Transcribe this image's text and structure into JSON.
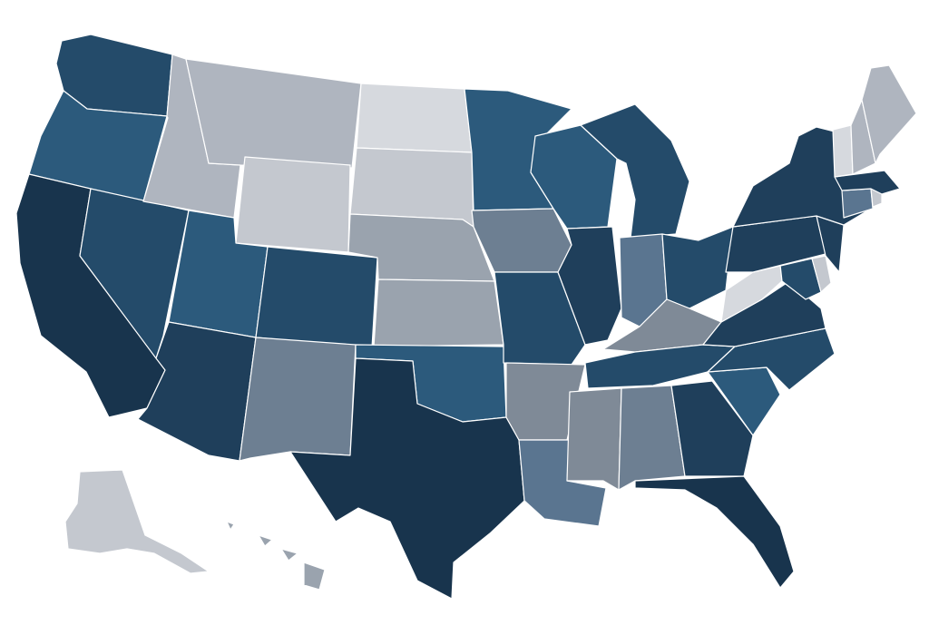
{
  "map": {
    "type": "choropleth",
    "region": "United States",
    "palette": {
      "lightest": "#d6d9de",
      "light": "#c4c8cf",
      "light_mid": "#afb5bf",
      "mid_gray": "#9aa3ae",
      "mid_slate": "#7f8a97",
      "slate": "#6d7f92",
      "blue_gray": "#5a7590",
      "mid_blue": "#2c5a7c",
      "dark_blue": "#244b6a",
      "darker": "#1f3f5b",
      "darkest": "#18344d",
      "border": "#ffffff"
    },
    "states": [
      {
        "id": "WA",
        "shade": "dark_blue"
      },
      {
        "id": "OR",
        "shade": "mid_blue"
      },
      {
        "id": "CA",
        "shade": "darkest"
      },
      {
        "id": "NV",
        "shade": "dark_blue"
      },
      {
        "id": "ID",
        "shade": "light_mid"
      },
      {
        "id": "MT",
        "shade": "light_mid"
      },
      {
        "id": "WY",
        "shade": "light"
      },
      {
        "id": "UT",
        "shade": "mid_blue"
      },
      {
        "id": "AZ",
        "shade": "darker"
      },
      {
        "id": "CO",
        "shade": "dark_blue"
      },
      {
        "id": "NM",
        "shade": "slate"
      },
      {
        "id": "ND",
        "shade": "lightest"
      },
      {
        "id": "SD",
        "shade": "light"
      },
      {
        "id": "NE",
        "shade": "mid_gray"
      },
      {
        "id": "KS",
        "shade": "mid_gray"
      },
      {
        "id": "OK",
        "shade": "mid_blue"
      },
      {
        "id": "TX",
        "shade": "darkest"
      },
      {
        "id": "MN",
        "shade": "mid_blue"
      },
      {
        "id": "IA",
        "shade": "slate"
      },
      {
        "id": "MO",
        "shade": "dark_blue"
      },
      {
        "id": "AR",
        "shade": "mid_slate"
      },
      {
        "id": "LA",
        "shade": "blue_gray"
      },
      {
        "id": "WI",
        "shade": "mid_blue"
      },
      {
        "id": "IL",
        "shade": "darker"
      },
      {
        "id": "MI",
        "shade": "dark_blue"
      },
      {
        "id": "IN",
        "shade": "blue_gray"
      },
      {
        "id": "OH",
        "shade": "dark_blue"
      },
      {
        "id": "KY",
        "shade": "mid_slate"
      },
      {
        "id": "TN",
        "shade": "dark_blue"
      },
      {
        "id": "MS",
        "shade": "mid_slate"
      },
      {
        "id": "AL",
        "shade": "slate"
      },
      {
        "id": "GA",
        "shade": "darker"
      },
      {
        "id": "FL",
        "shade": "darkest"
      },
      {
        "id": "SC",
        "shade": "mid_blue"
      },
      {
        "id": "NC",
        "shade": "dark_blue"
      },
      {
        "id": "VA",
        "shade": "darker"
      },
      {
        "id": "WV",
        "shade": "lightest"
      },
      {
        "id": "PA",
        "shade": "darker"
      },
      {
        "id": "NY",
        "shade": "darker"
      },
      {
        "id": "NJ",
        "shade": "darker"
      },
      {
        "id": "DE",
        "shade": "light"
      },
      {
        "id": "MD",
        "shade": "dark_blue"
      },
      {
        "id": "CT",
        "shade": "blue_gray"
      },
      {
        "id": "RI",
        "shade": "light"
      },
      {
        "id": "MA",
        "shade": "darker"
      },
      {
        "id": "VT",
        "shade": "lightest"
      },
      {
        "id": "NH",
        "shade": "light_mid"
      },
      {
        "id": "ME",
        "shade": "light_mid"
      },
      {
        "id": "AK",
        "shade": "light"
      },
      {
        "id": "HI",
        "shade": "mid_gray"
      }
    ]
  }
}
